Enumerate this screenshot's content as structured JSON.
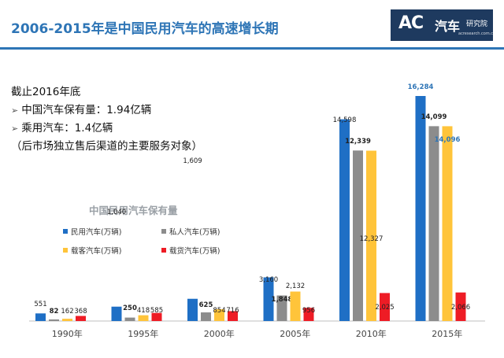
{
  "page": {
    "title": "2006-2015年是中国民用汽车的高速增长期",
    "logo": {
      "mark": "AC",
      "name": "汽车",
      "sub": "研究院",
      "url": "acresearch.com.cn"
    },
    "notes": [
      {
        "bullet": "",
        "text": "截止2016年底"
      },
      {
        "bullet": "➢",
        "text": "中国汽车保有量：1.94亿辆"
      },
      {
        "bullet": "➢",
        "text": "乘用汽车：1.4亿辆"
      },
      {
        "bullet": "",
        "text": "（后市场独立售后渠道的主要服务对象）"
      }
    ]
  },
  "chart_data": {
    "type": "bar",
    "title": "中国民用汽车保有量",
    "categories": [
      "1990年",
      "1995年",
      "2000年",
      "2005年",
      "2010年",
      "2015年"
    ],
    "series": [
      {
        "name": "民用汽车(万辆)",
        "color": "#1f6fc5",
        "values": [
          551,
          1040,
          1609,
          3160,
          14598,
          16284
        ],
        "labels": [
          "551",
          "1,040",
          "1,609",
          "3,160",
          "14,598",
          "16,284"
        ]
      },
      {
        "name": "私人汽车(万辆)",
        "color": "#8c8c8c",
        "values": [
          82,
          250,
          625,
          1848,
          12339,
          14099
        ],
        "labels": [
          "82",
          "250",
          "625",
          "1,848",
          "12,339",
          "14,099"
        ]
      },
      {
        "name": "载客汽车(万辆)",
        "color": "#ffc43a",
        "values": [
          162,
          418,
          854,
          2132,
          12327,
          14096
        ],
        "labels": [
          "162",
          "418",
          "854",
          "2,132",
          "12,327",
          "14,096"
        ]
      },
      {
        "name": "载货汽车(万辆)",
        "color": "#ee1c25",
        "values": [
          368,
          585,
          716,
          956,
          2025,
          2066
        ],
        "labels": [
          "368",
          "585",
          "716",
          "956",
          "2,025",
          "2,066"
        ]
      }
    ],
    "legend_position": "top-left",
    "grid": false,
    "ylim": [
      0,
      16284
    ]
  }
}
